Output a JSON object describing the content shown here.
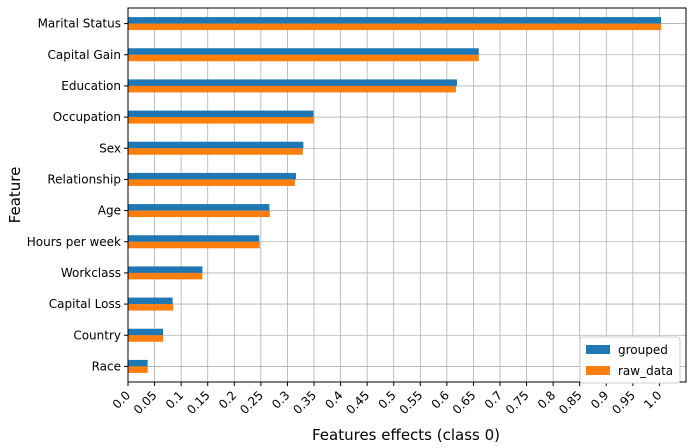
{
  "chart_data": {
    "type": "bar",
    "orientation": "horizontal",
    "categories": [
      "Marital Status",
      "Capital Gain",
      "Education",
      "Occupation",
      "Sex",
      "Relationship",
      "Age",
      "Hours per week",
      "Workclass",
      "Capital Loss",
      "Country",
      "Race"
    ],
    "series": [
      {
        "name": "grouped",
        "color": "#1f77b4",
        "values": [
          1.003,
          0.66,
          0.619,
          0.349,
          0.33,
          0.316,
          0.266,
          0.247,
          0.14,
          0.084,
          0.066,
          0.037
        ]
      },
      {
        "name": "raw_data",
        "color": "#ff7f0e",
        "values": [
          1.003,
          0.66,
          0.617,
          0.35,
          0.329,
          0.314,
          0.267,
          0.248,
          0.14,
          0.085,
          0.066,
          0.037
        ]
      }
    ],
    "xlabel": "Features  effects (class 0)",
    "ylabel": "Feature",
    "xlim": [
      0,
      1.05
    ],
    "xticks": [
      "0.0",
      "0.05",
      "0.1",
      "0.15",
      "0.2",
      "0.25",
      "0.3",
      "0.35",
      "0.4",
      "0.45",
      "0.5",
      "0.55",
      "0.6",
      "0.65",
      "0.7",
      "0.75",
      "0.8",
      "0.85",
      "0.9",
      "0.95",
      "1.0"
    ],
    "grid": true,
    "legend": "bottom-right"
  }
}
